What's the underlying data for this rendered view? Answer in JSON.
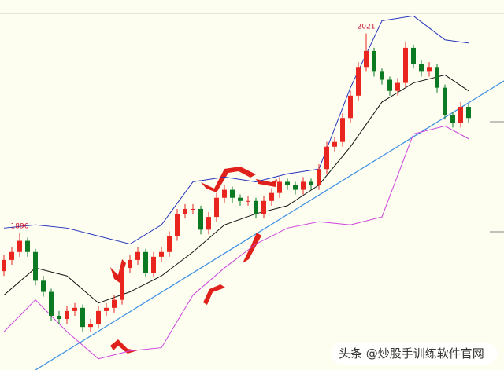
{
  "chart_data": {
    "type": "candlestick",
    "open": [
      1872,
      1879,
      1884,
      1891,
      1884,
      1866,
      1859,
      1844,
      1842,
      1847,
      1849,
      1837,
      1839,
      1847,
      1849,
      1854,
      1874,
      1879,
      1884,
      1871,
      1881,
      1884,
      1894,
      1908,
      1911,
      1911,
      1898,
      1906,
      1918,
      1923,
      1918,
      1916,
      1916,
      1908,
      1916,
      1921,
      1928,
      1926,
      1923,
      1928,
      1926,
      1936,
      1950,
      1953,
      1968,
      1982,
      2000,
      2010,
      1997,
      1992,
      1985,
      1990,
      2012,
      2002,
      1997,
      2000,
      1987,
      1970,
      1965,
      1975
    ],
    "high": [
      1882,
      1887,
      1896,
      1893,
      1886,
      1869,
      1861,
      1847,
      1850,
      1852,
      1851,
      1842,
      1850,
      1852,
      1857,
      1877,
      1882,
      1887,
      1886,
      1884,
      1887,
      1897,
      1911,
      1914,
      1914,
      1913,
      1909,
      1921,
      1926,
      1925,
      1920,
      1919,
      1918,
      1919,
      1924,
      1931,
      1930,
      1928,
      1931,
      1930,
      1939,
      1953,
      1956,
      1971,
      1985,
      2003,
      2021,
      2012,
      1999,
      1994,
      1993,
      2016,
      2014,
      2004,
      2003,
      2002,
      1989,
      1972,
      1978,
      1977
    ],
    "low": [
      1869,
      1876,
      1881,
      1881,
      1863,
      1856,
      1841,
      1839,
      1839,
      1844,
      1834,
      1834,
      1836,
      1844,
      1846,
      1851,
      1871,
      1876,
      1868,
      1868,
      1878,
      1881,
      1891,
      1905,
      1908,
      1895,
      1895,
      1903,
      1915,
      1915,
      1913,
      1913,
      1905,
      1905,
      1913,
      1918,
      1923,
      1920,
      1920,
      1923,
      1923,
      1933,
      1947,
      1950,
      1965,
      1979,
      1997,
      1994,
      1989,
      1982,
      1982,
      1987,
      1999,
      1994,
      1994,
      1984,
      1967,
      1962,
      1962,
      1965
    ],
    "close": [
      1879,
      1884,
      1891,
      1884,
      1866,
      1859,
      1844,
      1842,
      1847,
      1849,
      1837,
      1839,
      1847,
      1849,
      1854,
      1874,
      1879,
      1884,
      1871,
      1881,
      1884,
      1894,
      1908,
      1911,
      1911,
      1898,
      1906,
      1918,
      1923,
      1918,
      1916,
      1916,
      1908,
      1916,
      1921,
      1928,
      1926,
      1923,
      1928,
      1926,
      1936,
      1950,
      1953,
      1968,
      1982,
      2000,
      2010,
      1997,
      1992,
      1985,
      1990,
      2012,
      2002,
      1997,
      2000,
      1987,
      1970,
      1965,
      1975,
      1968
    ],
    "up_color": "#e8251f",
    "down_color": "#0b7a22",
    "ylim": [
      1810,
      2042
    ],
    "lines": [
      {
        "color": "#111111",
        "x": [
          0,
          4,
          8,
          12,
          16,
          20,
          24,
          28,
          32,
          36,
          40,
          44,
          48,
          52,
          56,
          59
        ],
        "values": [
          1857,
          1874,
          1869,
          1852,
          1859,
          1869,
          1884,
          1901,
          1908,
          1913,
          1926,
          1950,
          1978,
          1990,
          1995,
          1985
        ]
      },
      {
        "color": "#2233bb",
        "x": [
          0,
          4,
          8,
          12,
          16,
          20,
          24,
          28,
          32,
          36,
          40,
          44,
          48,
          52,
          56,
          59
        ],
        "values": [
          1899,
          1901,
          1899,
          1894,
          1889,
          1901,
          1928,
          1931,
          1928,
          1933,
          1936,
          1987,
          2029,
          2032,
          2017,
          2015
        ]
      },
      {
        "color": "#cc44dd",
        "x": [
          0,
          4,
          8,
          12,
          16,
          20,
          24,
          28,
          32,
          36,
          40,
          44,
          48,
          52,
          56,
          59
        ],
        "values": [
          1834,
          1854,
          1834,
          1817,
          1822,
          1824,
          1857,
          1874,
          1889,
          1899,
          1903,
          1901,
          1906,
          1958,
          1963,
          1955
        ]
      }
    ],
    "annotations": [
      "1896",
      "2021"
    ],
    "watermark": "头条 @炒股手训练软件官网"
  }
}
